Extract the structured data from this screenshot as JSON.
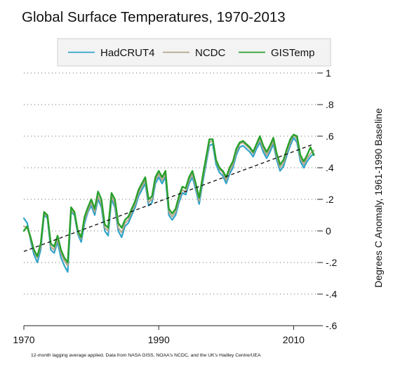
{
  "chart_data": {
    "type": "line",
    "title": "Global Surface Temperatures, 1970-2013",
    "xlabel": "",
    "ylabel": "Degrees C Anomaly, 1961-1990 Baseline",
    "xlim": [
      1970,
      2013.5
    ],
    "ylim": [
      -0.6,
      1.0
    ],
    "x_ticks": [
      1970,
      1990,
      2010
    ],
    "x_tick_labels": [
      "1970",
      "1990",
      "2010"
    ],
    "y_ticks": [
      1.0,
      0.8,
      0.6,
      0.4,
      0.2,
      0.0,
      -0.2,
      -0.4,
      -0.6
    ],
    "y_tick_labels": [
      "1",
      ".8",
      ".6",
      ".4",
      ".2",
      "0",
      "-.2",
      "-.4",
      "-.6"
    ],
    "y_axis_side": "right",
    "grid": "horizontal dotted",
    "legend_position": "top",
    "note": "12-month lagging average applied. Data from NASA GISS, NOAA's NCDC, and the UK's Hadley Centre/UEA",
    "series": [
      {
        "name": "HadCRUT4",
        "color": "#2ea3c9",
        "x": [
          1970,
          1970.5,
          1971,
          1971.5,
          1972,
          1972.5,
          1973,
          1973.5,
          1974,
          1974.5,
          1975,
          1975.5,
          1976,
          1976.5,
          1977,
          1977.5,
          1978,
          1978.5,
          1979,
          1979.5,
          1980,
          1980.5,
          1981,
          1981.5,
          1982,
          1982.5,
          1983,
          1983.5,
          1984,
          1984.5,
          1985,
          1985.5,
          1986,
          1986.5,
          1987,
          1987.5,
          1988,
          1988.5,
          1989,
          1989.5,
          1990,
          1990.5,
          1991,
          1991.5,
          1992,
          1992.5,
          1993,
          1993.5,
          1994,
          1994.5,
          1995,
          1995.5,
          1996,
          1996.5,
          1997,
          1997.5,
          1998,
          1998.5,
          1999,
          1999.5,
          2000,
          2000.5,
          2001,
          2001.5,
          2002,
          2002.5,
          2003,
          2003.5,
          2004,
          2004.5,
          2005,
          2005.5,
          2006,
          2006.5,
          2007,
          2007.5,
          2008,
          2008.5,
          2009,
          2009.5,
          2010,
          2010.5,
          2011,
          2011.5,
          2012,
          2012.5,
          2013
        ],
        "values": [
          0.08,
          0.05,
          -0.06,
          -0.15,
          -0.2,
          -0.12,
          0.1,
          0.08,
          -0.12,
          -0.14,
          -0.07,
          -0.17,
          -0.22,
          -0.26,
          0.12,
          0.1,
          -0.02,
          -0.07,
          0.05,
          0.12,
          0.16,
          0.1,
          0.2,
          0.15,
          0.0,
          -0.03,
          0.2,
          0.15,
          0.0,
          -0.04,
          0.03,
          0.05,
          0.1,
          0.15,
          0.22,
          0.26,
          0.3,
          0.16,
          0.18,
          0.3,
          0.34,
          0.3,
          0.34,
          0.1,
          0.07,
          0.1,
          0.18,
          0.24,
          0.23,
          0.3,
          0.34,
          0.26,
          0.17,
          0.3,
          0.42,
          0.54,
          0.55,
          0.42,
          0.37,
          0.35,
          0.3,
          0.36,
          0.4,
          0.48,
          0.53,
          0.54,
          0.52,
          0.5,
          0.47,
          0.52,
          0.56,
          0.5,
          0.46,
          0.5,
          0.55,
          0.45,
          0.38,
          0.41,
          0.48,
          0.54,
          0.59,
          0.56,
          0.44,
          0.4,
          0.44,
          0.47,
          0.49
        ]
      },
      {
        "name": "NCDC",
        "color": "#b2a58a",
        "x": [
          1970,
          1970.5,
          1971,
          1971.5,
          1972,
          1972.5,
          1973,
          1973.5,
          1974,
          1974.5,
          1975,
          1975.5,
          1976,
          1976.5,
          1977,
          1977.5,
          1978,
          1978.5,
          1979,
          1979.5,
          1980,
          1980.5,
          1981,
          1981.5,
          1982,
          1982.5,
          1983,
          1983.5,
          1984,
          1984.5,
          1985,
          1985.5,
          1986,
          1986.5,
          1987,
          1987.5,
          1988,
          1988.5,
          1989,
          1989.5,
          1990,
          1990.5,
          1991,
          1991.5,
          1992,
          1992.5,
          1993,
          1993.5,
          1994,
          1994.5,
          1995,
          1995.5,
          1996,
          1996.5,
          1997,
          1997.5,
          1998,
          1998.5,
          1999,
          1999.5,
          2000,
          2000.5,
          2001,
          2001.5,
          2002,
          2002.5,
          2003,
          2003.5,
          2004,
          2004.5,
          2005,
          2005.5,
          2006,
          2006.5,
          2007,
          2007.5,
          2008,
          2008.5,
          2009,
          2009.5,
          2010,
          2010.5,
          2011,
          2011.5,
          2012,
          2012.5,
          2013
        ],
        "values": [
          0.03,
          0.02,
          -0.05,
          -0.13,
          -0.17,
          -0.1,
          0.11,
          0.09,
          -0.1,
          -0.12,
          -0.05,
          -0.14,
          -0.19,
          -0.22,
          0.13,
          0.11,
          -0.01,
          -0.05,
          0.07,
          0.13,
          0.18,
          0.12,
          0.22,
          0.17,
          0.02,
          0.0,
          0.22,
          0.17,
          0.02,
          -0.01,
          0.05,
          0.07,
          0.12,
          0.17,
          0.24,
          0.28,
          0.32,
          0.18,
          0.2,
          0.32,
          0.36,
          0.32,
          0.36,
          0.12,
          0.09,
          0.12,
          0.2,
          0.26,
          0.25,
          0.32,
          0.36,
          0.28,
          0.19,
          0.32,
          0.44,
          0.56,
          0.57,
          0.44,
          0.39,
          0.37,
          0.32,
          0.38,
          0.42,
          0.5,
          0.55,
          0.56,
          0.54,
          0.52,
          0.49,
          0.54,
          0.58,
          0.52,
          0.48,
          0.52,
          0.57,
          0.47,
          0.4,
          0.43,
          0.5,
          0.56,
          0.61,
          0.58,
          0.46,
          0.42,
          0.46,
          0.49,
          0.51
        ]
      },
      {
        "name": "GISTemp",
        "color": "#27a02c",
        "x": [
          1970,
          1970.5,
          1971,
          1971.5,
          1972,
          1972.5,
          1973,
          1973.5,
          1974,
          1974.5,
          1975,
          1975.5,
          1976,
          1976.5,
          1977,
          1977.5,
          1978,
          1978.5,
          1979,
          1979.5,
          1980,
          1980.5,
          1981,
          1981.5,
          1982,
          1982.5,
          1983,
          1983.5,
          1984,
          1984.5,
          1985,
          1985.5,
          1986,
          1986.5,
          1987,
          1987.5,
          1988,
          1988.5,
          1989,
          1989.5,
          1990,
          1990.5,
          1991,
          1991.5,
          1992,
          1992.5,
          1993,
          1993.5,
          1994,
          1994.5,
          1995,
          1995.5,
          1996,
          1996.5,
          1997,
          1997.5,
          1998,
          1998.5,
          1999,
          1999.5,
          2000,
          2000.5,
          2001,
          2001.5,
          2002,
          2002.5,
          2003,
          2003.5,
          2004,
          2004.5,
          2005,
          2005.5,
          2006,
          2006.5,
          2007,
          2007.5,
          2008,
          2008.5,
          2009,
          2009.5,
          2010,
          2010.5,
          2011,
          2011.5,
          2012,
          2012.5,
          2013
        ],
        "values": [
          0.0,
          0.03,
          -0.04,
          -0.12,
          -0.16,
          -0.08,
          0.12,
          0.1,
          -0.08,
          -0.1,
          -0.03,
          -0.12,
          -0.17,
          -0.2,
          0.15,
          0.12,
          0.0,
          -0.04,
          0.09,
          0.15,
          0.2,
          0.14,
          0.25,
          0.2,
          0.04,
          0.02,
          0.24,
          0.2,
          0.05,
          0.02,
          0.07,
          0.09,
          0.14,
          0.19,
          0.26,
          0.3,
          0.34,
          0.2,
          0.22,
          0.34,
          0.38,
          0.34,
          0.38,
          0.14,
          0.11,
          0.14,
          0.22,
          0.28,
          0.27,
          0.34,
          0.38,
          0.3,
          0.21,
          0.34,
          0.46,
          0.58,
          0.58,
          0.45,
          0.4,
          0.38,
          0.34,
          0.4,
          0.44,
          0.52,
          0.56,
          0.57,
          0.55,
          0.53,
          0.5,
          0.55,
          0.6,
          0.54,
          0.5,
          0.54,
          0.59,
          0.49,
          0.42,
          0.45,
          0.52,
          0.58,
          0.61,
          0.6,
          0.48,
          0.44,
          0.48,
          0.53,
          0.48
        ]
      }
    ],
    "trend": {
      "style": "dashed",
      "color": "#111111",
      "x": [
        1970,
        2013
      ],
      "values": [
        -0.13,
        0.55
      ]
    }
  }
}
